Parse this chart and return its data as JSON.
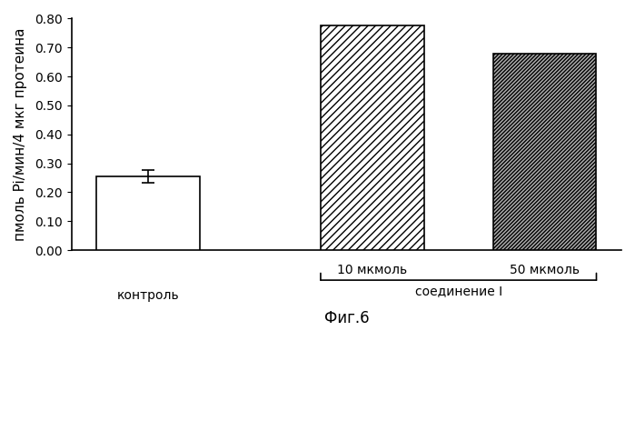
{
  "values": [
    0.254,
    0.775,
    0.68
  ],
  "error_bars": [
    0.022,
    0.0,
    0.0
  ],
  "hatches": [
    "",
    "////",
    "////////"
  ],
  "bar_facecolors": [
    "white",
    "white",
    "#aaaaaa"
  ],
  "bar_edge_colors": [
    "black",
    "black",
    "black"
  ],
  "ylim": [
    0.0,
    0.8
  ],
  "yticks": [
    0.0,
    0.1,
    0.2,
    0.3,
    0.4,
    0.5,
    0.6,
    0.7,
    0.8
  ],
  "ylabel": "пмоль Pi/мин/4 мкг протеина",
  "group_label_1": "контроль",
  "group_label_2": "соединение I",
  "sub_label_2a": "10 мкмоль",
  "sub_label_2b": "50 мкмоль",
  "figure_label": "Фиг.6",
  "background_color": "#ffffff",
  "bar_width": 0.6,
  "x_positions": [
    1.0,
    2.3,
    3.3
  ]
}
